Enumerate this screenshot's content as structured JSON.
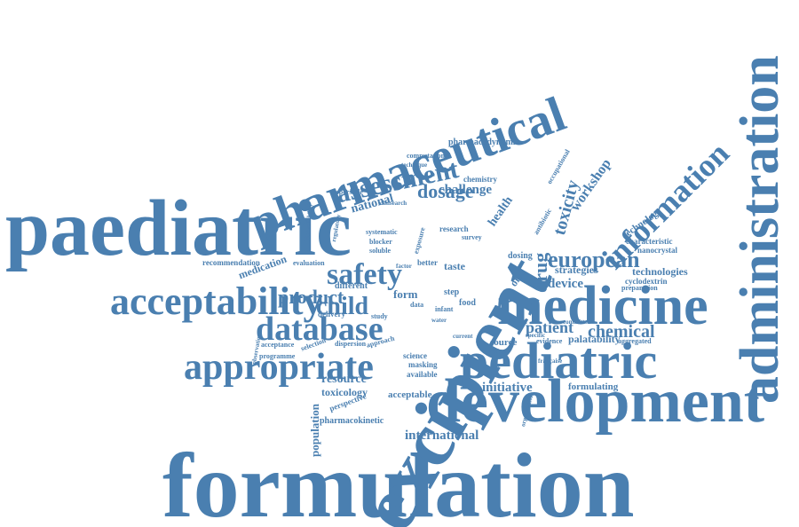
{
  "colors": {
    "word": "#4a7fb0",
    "background": "#ffffff"
  },
  "words": [
    {
      "text": "formulation"
    },
    {
      "text": "paediatric"
    },
    {
      "text": "excipient"
    },
    {
      "text": "development"
    },
    {
      "text": "administration"
    },
    {
      "text": "pharmaceutical"
    },
    {
      "text": "medicine"
    },
    {
      "text": "pediatric"
    },
    {
      "text": "acceptability"
    },
    {
      "text": "appropriate"
    },
    {
      "text": "information"
    },
    {
      "text": "database"
    },
    {
      "text": "assessment"
    },
    {
      "text": "safety"
    },
    {
      "text": "european"
    },
    {
      "text": "child"
    },
    {
      "text": "product"
    },
    {
      "text": "dosage"
    },
    {
      "text": "toxicity"
    },
    {
      "text": "chemical"
    },
    {
      "text": "patient"
    },
    {
      "text": "drug"
    },
    {
      "text": "initiative"
    },
    {
      "text": "international"
    },
    {
      "text": "workshop"
    },
    {
      "text": "population"
    },
    {
      "text": "national"
    },
    {
      "text": "challenge"
    },
    {
      "text": "resource"
    },
    {
      "text": "toxicology"
    },
    {
      "text": "health"
    },
    {
      "text": "device"
    },
    {
      "text": "strategies"
    },
    {
      "text": "technologies"
    },
    {
      "text": "technology"
    },
    {
      "text": "pharmacodynamic"
    },
    {
      "text": "pharmacokinetic"
    },
    {
      "text": "formulating"
    },
    {
      "text": "acceptable"
    },
    {
      "text": "medication"
    },
    {
      "text": "recommendation"
    },
    {
      "text": "palatability"
    },
    {
      "text": "characteristic"
    },
    {
      "text": "nanocrystal"
    },
    {
      "text": "cyclodextrin"
    },
    {
      "text": "preparation"
    },
    {
      "text": "computational"
    },
    {
      "text": "chemistry"
    },
    {
      "text": "dispersible"
    },
    {
      "text": "systematic"
    },
    {
      "text": "blocker"
    },
    {
      "text": "soluble"
    },
    {
      "text": "evaluation"
    },
    {
      "text": "different"
    },
    {
      "text": "taste"
    },
    {
      "text": "better"
    },
    {
      "text": "research"
    },
    {
      "text": "survey"
    },
    {
      "text": "dosing"
    },
    {
      "text": "oral"
    },
    {
      "text": "form"
    },
    {
      "text": "step"
    },
    {
      "text": "food"
    },
    {
      "text": "infant"
    },
    {
      "text": "delivery"
    },
    {
      "text": "study"
    },
    {
      "text": "science"
    },
    {
      "text": "masking"
    },
    {
      "text": "available"
    },
    {
      "text": "acceptance"
    },
    {
      "text": "selection"
    },
    {
      "text": "programme"
    },
    {
      "text": "dispersion"
    },
    {
      "text": "approach"
    },
    {
      "text": "perspective"
    },
    {
      "text": "source"
    },
    {
      "text": "evidence"
    },
    {
      "text": "system"
    },
    {
      "text": "aggregated"
    },
    {
      "text": "clinsearch"
    },
    {
      "text": "occupational"
    },
    {
      "text": "exposure"
    },
    {
      "text": "antibiotic"
    },
    {
      "text": "bioavailability"
    },
    {
      "text": "observational"
    },
    {
      "text": "regulatory"
    },
    {
      "text": "factor"
    },
    {
      "text": "water"
    },
    {
      "text": "current"
    },
    {
      "text": "data"
    },
    {
      "text": "technique"
    },
    {
      "text": "committee"
    },
    {
      "text": "specific"
    },
    {
      "text": "organization"
    },
    {
      "text": "française"
    }
  ]
}
